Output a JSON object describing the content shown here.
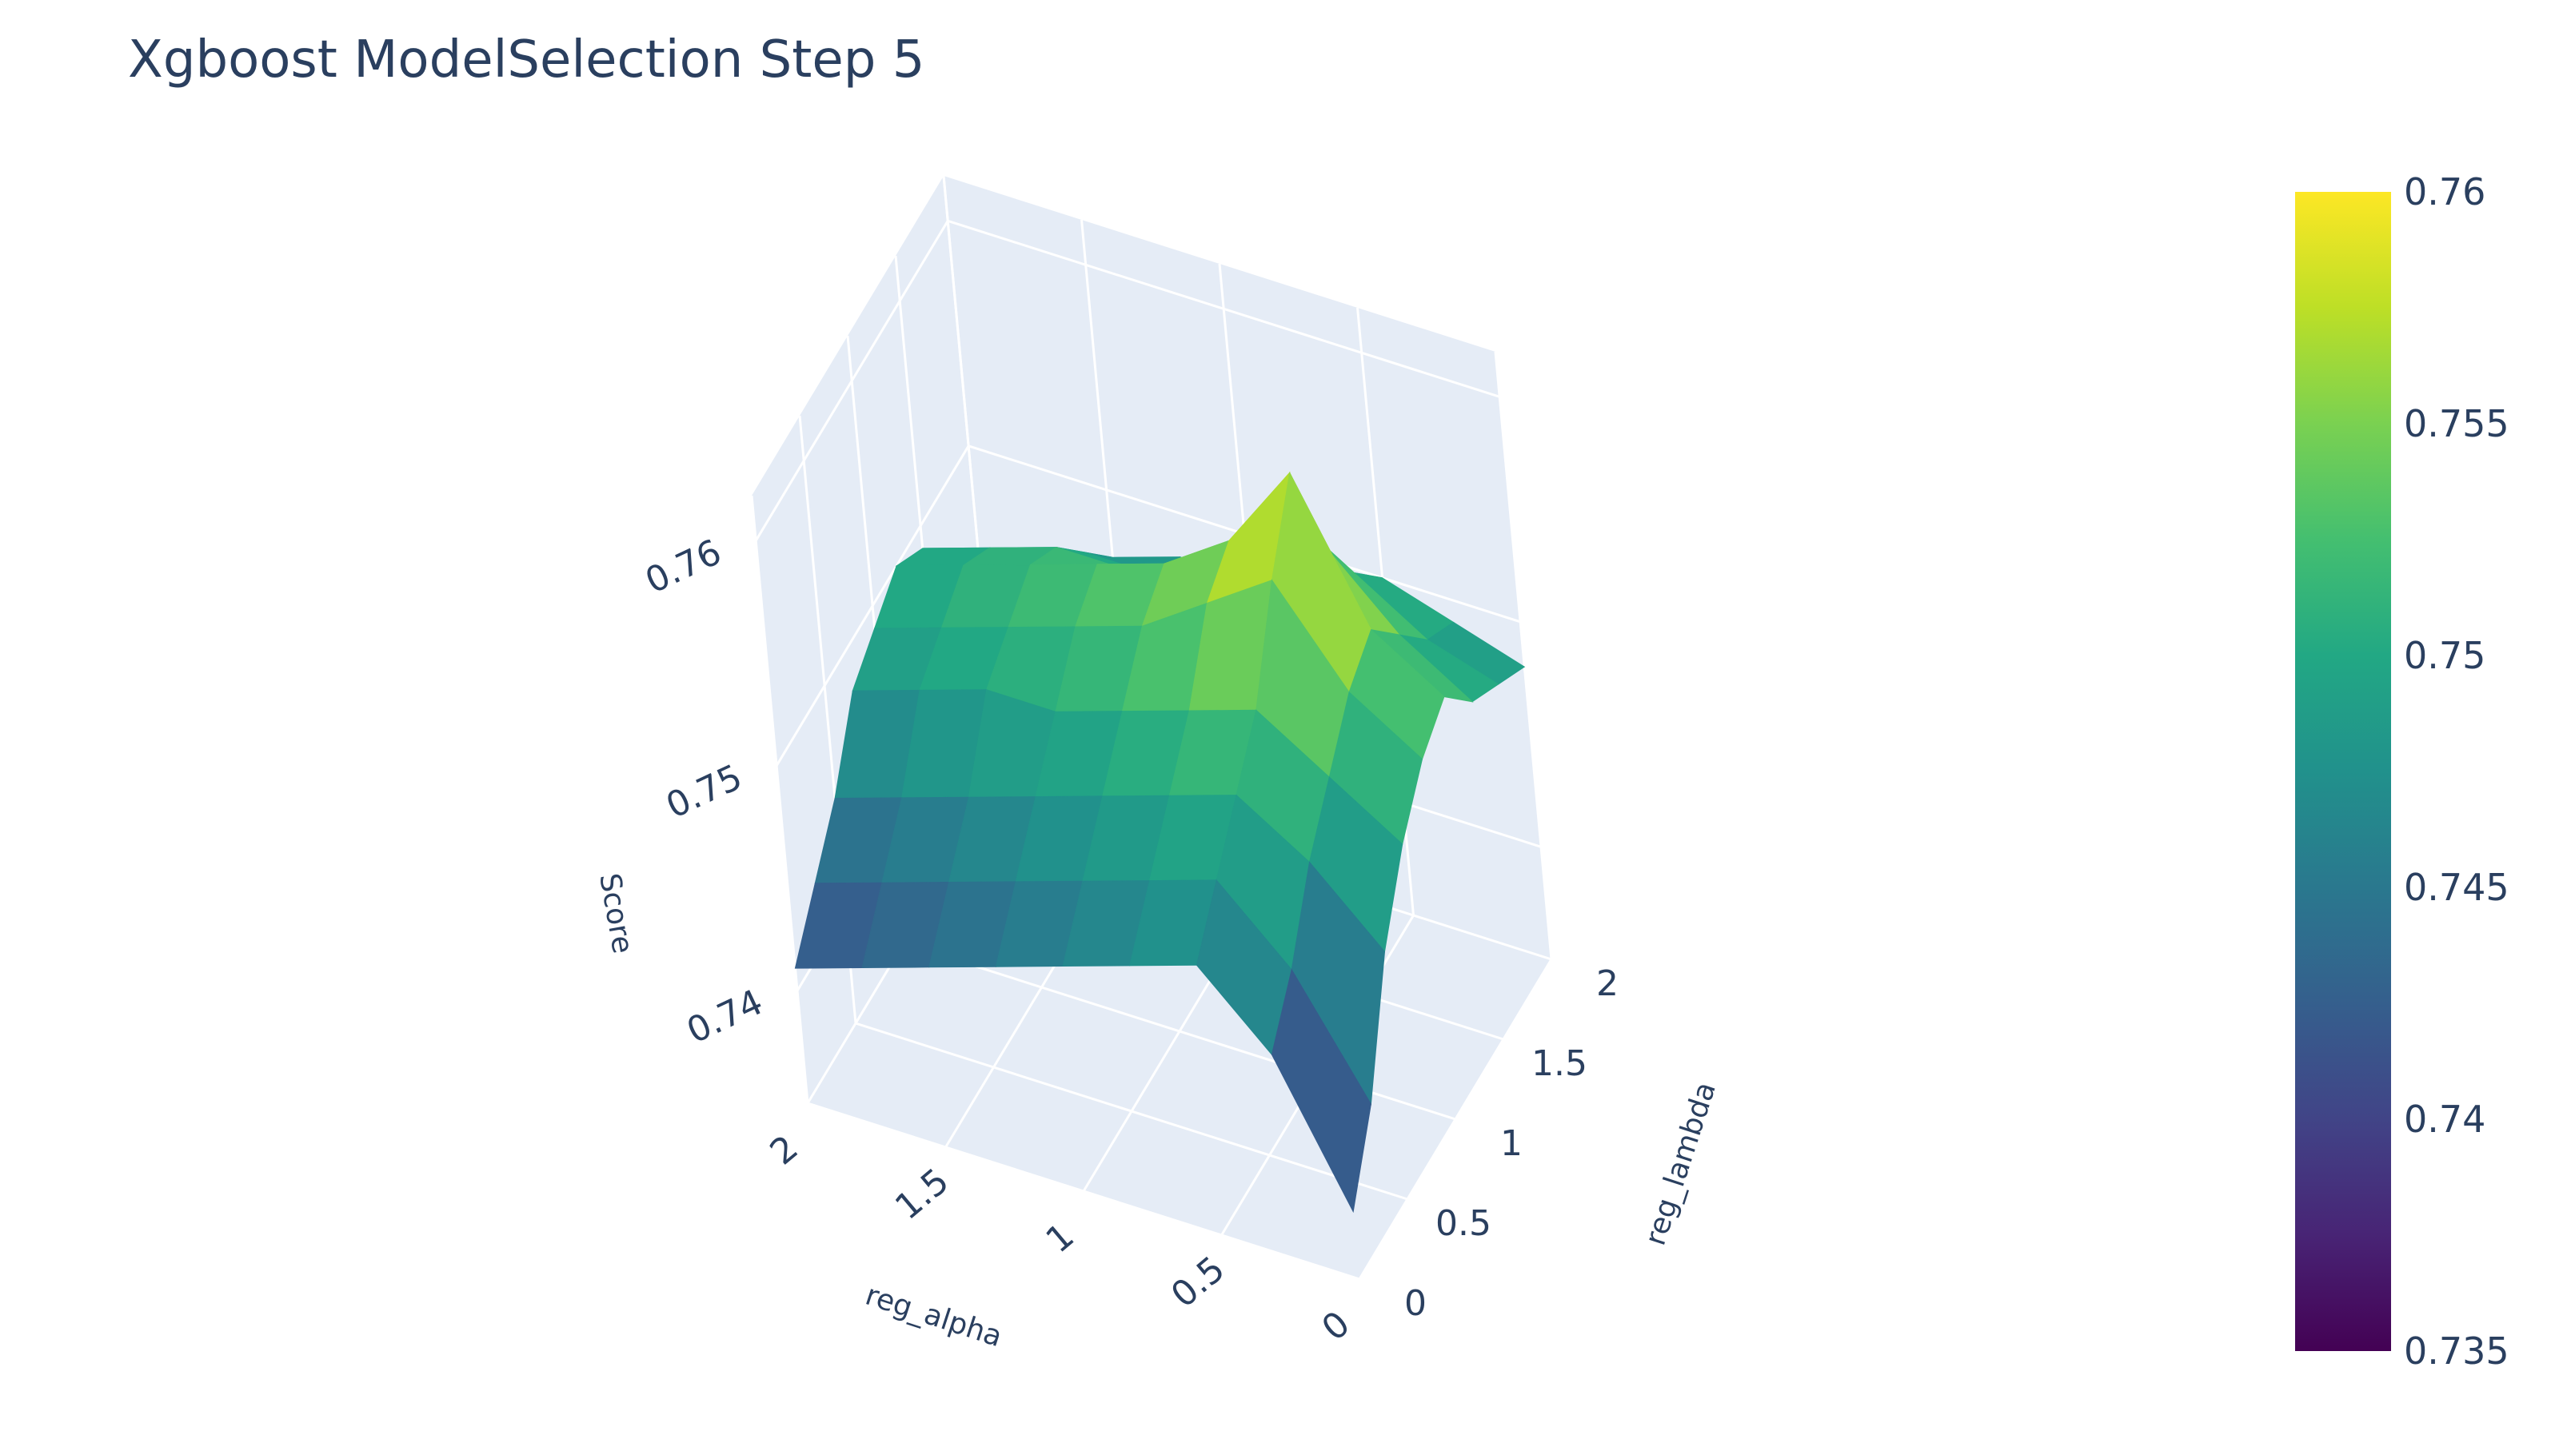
{
  "title": "Xgboost ModelSelection Step 5",
  "chart_data": {
    "type": "surface3d",
    "title": "Xgboost ModelSelection Step 5",
    "x_axis": {
      "label": "reg_alpha",
      "range": [
        0,
        2
      ],
      "ticks": [
        "0",
        "0.5",
        "1",
        "1.5",
        "2"
      ],
      "tick_values": [
        0,
        0.5,
        1,
        1.5,
        2
      ]
    },
    "y_axis": {
      "label": "reg_lambda",
      "range": [
        0,
        2
      ],
      "ticks": [
        "0",
        "0.5",
        "1",
        "1.5",
        "2"
      ],
      "tick_values": [
        0,
        0.5,
        1,
        1.5,
        2
      ]
    },
    "z_axis": {
      "label": "Score",
      "range": [
        0.735,
        0.762
      ],
      "ticks": [
        "0.74",
        "0.75",
        "0.76"
      ],
      "tick_values": [
        0.74,
        0.75,
        0.76
      ]
    },
    "colorscale": "Viridis",
    "colorbar": {
      "min": 0.735,
      "max": 0.76,
      "ticks": [
        "0.76",
        "0.755",
        "0.75",
        "0.745",
        "0.74",
        "0.735"
      ],
      "tick_values": [
        0.76,
        0.755,
        0.75,
        0.745,
        0.74,
        0.735
      ]
    },
    "grid_x": [
      0,
      0.25,
      0.5,
      0.75,
      1,
      1.25,
      1.5,
      1.75,
      2
    ],
    "grid_y": [
      0,
      0.25,
      0.5,
      0.75,
      1,
      1.25,
      1.5,
      1.75,
      2
    ],
    "z_rows_by_alpha": [
      [
        0.738,
        0.741,
        0.746,
        0.749,
        0.751,
        0.752,
        0.75,
        0.749,
        0.748
      ],
      [
        0.744,
        0.746,
        0.749,
        0.751,
        0.753,
        0.754,
        0.752,
        0.75,
        0.749
      ],
      [
        0.747,
        0.749,
        0.751,
        0.753,
        0.757,
        0.76,
        0.755,
        0.752,
        0.75
      ],
      [
        0.746,
        0.748,
        0.75,
        0.752,
        0.755,
        0.756,
        0.754,
        0.751,
        0.749
      ],
      [
        0.745,
        0.747,
        0.749,
        0.751,
        0.753,
        0.754,
        0.752,
        0.75,
        0.748
      ],
      [
        0.744,
        0.746,
        0.748,
        0.75,
        0.752,
        0.753,
        0.751,
        0.749,
        0.748
      ],
      [
        0.743,
        0.745,
        0.747,
        0.75,
        0.751,
        0.752,
        0.751,
        0.749,
        0.747
      ],
      [
        0.742,
        0.744,
        0.746,
        0.749,
        0.75,
        0.751,
        0.75,
        0.748,
        0.746
      ],
      [
        0.741,
        0.743,
        0.745,
        0.748,
        0.749,
        0.75,
        0.749,
        0.747,
        0.745
      ]
    ]
  }
}
